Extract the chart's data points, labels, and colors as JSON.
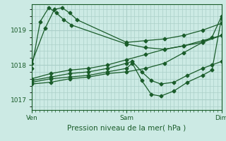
{
  "xlabel": "Pression niveau de la mer( hPa )",
  "bg_color": "#cceae4",
  "grid_color": "#aacfc8",
  "line_color": "#1a5c2a",
  "ylim": [
    1016.7,
    1019.75
  ],
  "xtick_labels": [
    "Ven",
    "Sam",
    "Dim"
  ],
  "xtick_pos": [
    0.0,
    0.5,
    1.0
  ],
  "series": [
    {
      "x": [
        0.0,
        0.045,
        0.09,
        0.13,
        0.17,
        0.21,
        0.5,
        0.6,
        0.7,
        0.8,
        0.9,
        1.0
      ],
      "y": [
        1017.9,
        1019.25,
        1019.65,
        1019.5,
        1019.3,
        1019.15,
        1018.6,
        1018.5,
        1018.45,
        1018.55,
        1018.7,
        1018.85
      ]
    },
    {
      "x": [
        0.0,
        0.07,
        0.12,
        0.16,
        0.2,
        0.24,
        0.5,
        0.6,
        0.7,
        0.8,
        0.9,
        1.0
      ],
      "y": [
        1018.05,
        1019.05,
        1019.6,
        1019.65,
        1019.5,
        1019.3,
        1018.65,
        1018.7,
        1018.75,
        1018.85,
        1019.0,
        1019.2
      ]
    },
    {
      "x": [
        0.0,
        0.1,
        0.2,
        0.3,
        0.4,
        0.5,
        0.6,
        0.7,
        0.8,
        0.9,
        1.0
      ],
      "y": [
        1017.6,
        1017.75,
        1017.85,
        1017.9,
        1018.0,
        1018.15,
        1018.3,
        1018.45,
        1018.55,
        1018.65,
        1018.85
      ]
    },
    {
      "x": [
        0.0,
        0.1,
        0.2,
        0.3,
        0.4,
        0.5,
        0.53,
        0.58,
        0.63,
        0.68,
        0.75,
        0.82,
        0.9,
        0.95,
        1.0
      ],
      "y": [
        1017.55,
        1017.65,
        1017.75,
        1017.8,
        1017.9,
        1018.05,
        1018.1,
        1017.8,
        1017.55,
        1017.45,
        1017.5,
        1017.7,
        1017.9,
        1018.0,
        1018.1
      ]
    },
    {
      "x": [
        0.0,
        0.1,
        0.2,
        0.3,
        0.4,
        0.5,
        0.53,
        0.58,
        0.63,
        0.68,
        0.75,
        0.82,
        0.9,
        0.95,
        1.0
      ],
      "y": [
        1017.5,
        1017.6,
        1017.65,
        1017.7,
        1017.8,
        1017.9,
        1018.05,
        1017.55,
        1017.15,
        1017.1,
        1017.25,
        1017.5,
        1017.7,
        1017.85,
        1019.35
      ]
    },
    {
      "x": [
        0.0,
        0.1,
        0.2,
        0.3,
        0.4,
        0.5,
        0.6,
        0.7,
        0.8,
        0.9,
        0.95,
        1.0
      ],
      "y": [
        1017.45,
        1017.5,
        1017.6,
        1017.65,
        1017.75,
        1017.8,
        1017.9,
        1018.05,
        1018.35,
        1018.65,
        1018.8,
        1019.4
      ]
    }
  ]
}
